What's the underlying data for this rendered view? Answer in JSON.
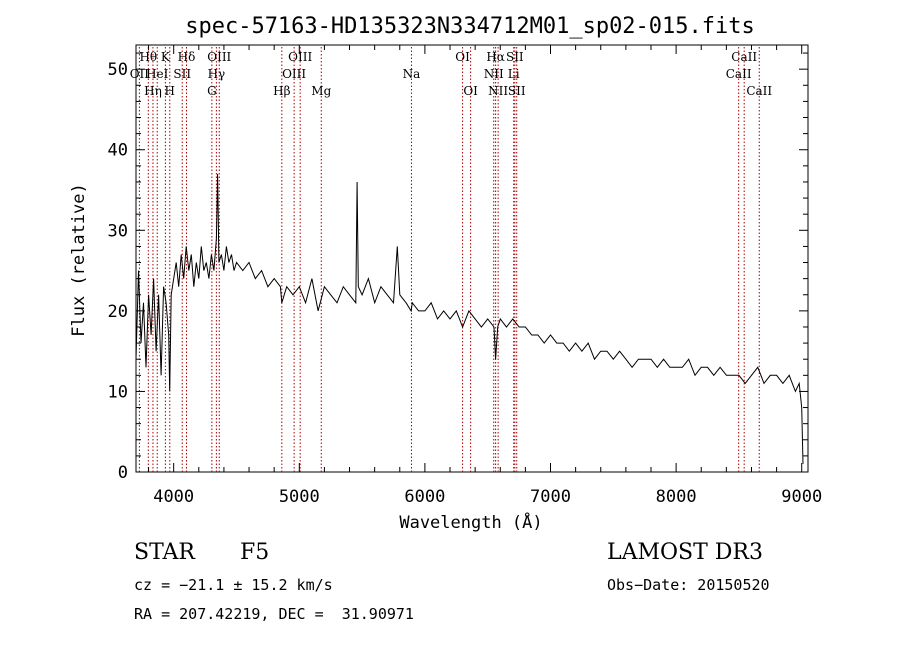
{
  "chart_data": {
    "type": "line",
    "title": "spec-57163-HD135323N334712M01_sp02-015.fits",
    "xlabel": "Wavelength (Å)",
    "ylabel": "Flux (relative)",
    "xlim": [
      3700,
      9050
    ],
    "ylim": [
      0,
      53
    ],
    "xticks": [
      4000,
      5000,
      6000,
      7000,
      8000,
      9000
    ],
    "yticks": [
      0,
      10,
      20,
      30,
      40,
      50
    ],
    "grid": false,
    "series": [
      {
        "name": "flux",
        "x": [
          3700,
          3720,
          3740,
          3760,
          3780,
          3800,
          3820,
          3840,
          3860,
          3880,
          3900,
          3920,
          3940,
          3960,
          3968,
          3980,
          4000,
          4020,
          4040,
          4060,
          4080,
          4100,
          4120,
          4140,
          4160,
          4180,
          4200,
          4220,
          4240,
          4260,
          4280,
          4300,
          4320,
          4340,
          4350,
          4360,
          4380,
          4400,
          4420,
          4440,
          4460,
          4480,
          4500,
          4550,
          4600,
          4650,
          4700,
          4750,
          4800,
          4850,
          4861,
          4900,
          4950,
          5000,
          5050,
          5100,
          5150,
          5200,
          5250,
          5300,
          5350,
          5400,
          5450,
          5460,
          5470,
          5500,
          5550,
          5600,
          5650,
          5700,
          5750,
          5780,
          5800,
          5850,
          5890,
          5900,
          5950,
          6000,
          6050,
          6100,
          6150,
          6200,
          6250,
          6300,
          6350,
          6400,
          6450,
          6500,
          6550,
          6563,
          6580,
          6600,
          6650,
          6700,
          6750,
          6800,
          6850,
          6900,
          6950,
          7000,
          7050,
          7100,
          7150,
          7200,
          7250,
          7300,
          7350,
          7400,
          7450,
          7500,
          7550,
          7600,
          7650,
          7700,
          7750,
          7800,
          7850,
          7900,
          7950,
          8000,
          8050,
          8100,
          8150,
          8200,
          8250,
          8300,
          8350,
          8400,
          8450,
          8500,
          8550,
          8600,
          8650,
          8700,
          8750,
          8800,
          8850,
          8900,
          8950,
          8980,
          9000,
          9010
        ],
        "y": [
          14,
          25,
          16,
          21,
          13,
          22,
          17,
          24,
          15,
          22,
          12,
          23,
          21,
          17,
          10,
          22,
          24,
          26,
          23,
          27,
          24,
          28,
          25,
          27,
          23,
          26,
          24,
          28,
          25,
          26,
          24,
          27,
          25,
          29,
          37,
          26,
          27,
          25,
          28,
          26,
          27,
          25,
          26,
          25,
          26,
          24,
          25,
          23,
          24,
          23,
          21,
          23,
          22,
          23,
          21,
          24,
          20,
          23,
          22,
          21,
          23,
          22,
          21,
          36,
          23,
          22,
          24,
          21,
          23,
          22,
          21,
          28,
          22,
          21,
          20,
          21,
          20,
          20,
          21,
          19,
          20,
          19,
          20,
          18,
          20,
          19,
          18,
          19,
          18,
          14,
          18,
          19,
          18,
          19,
          18,
          18,
          17,
          17,
          16,
          17,
          16,
          16,
          15,
          16,
          15,
          16,
          14,
          15,
          15,
          14,
          15,
          14,
          13,
          14,
          14,
          14,
          13,
          14,
          13,
          13,
          13,
          14,
          12,
          13,
          13,
          12,
          13,
          12,
          12,
          12,
          11,
          12,
          13,
          11,
          12,
          12,
          11,
          12,
          10,
          11,
          8,
          1
        ]
      }
    ],
    "line_markers": [
      {
        "x": 3727,
        "label": "OII",
        "row": 2
      },
      {
        "x": 3798,
        "label": "Hθ",
        "row": 1
      },
      {
        "x": 3835,
        "label": "Hη",
        "row": 3
      },
      {
        "x": 3869,
        "label": "HeI",
        "row": 2
      },
      {
        "x": 3934,
        "label": "K",
        "row": 1
      },
      {
        "x": 3969,
        "label": "H",
        "row": 3
      },
      {
        "x": 4068,
        "label": "SII",
        "row": 2
      },
      {
        "x": 4102,
        "label": "Hδ",
        "row": 1
      },
      {
        "x": 4304,
        "label": "G",
        "row": 3
      },
      {
        "x": 4340,
        "label": "Hγ",
        "row": 2
      },
      {
        "x": 4363,
        "label": "OIII",
        "row": 1
      },
      {
        "x": 4861,
        "label": "Hβ",
        "row": 3
      },
      {
        "x": 4959,
        "label": "OIII",
        "row": 2
      },
      {
        "x": 5007,
        "label": "OIII",
        "row": 1
      },
      {
        "x": 5175,
        "label": "Mg",
        "row": 3
      },
      {
        "x": 5893,
        "label": "Na",
        "row": 2
      },
      {
        "x": 6300,
        "label": "OI",
        "row": 1
      },
      {
        "x": 6364,
        "label": "OI",
        "row": 3
      },
      {
        "x": 6548,
        "label": "NII",
        "row": 2
      },
      {
        "x": 6563,
        "label": "Hα",
        "row": 1
      },
      {
        "x": 6583,
        "label": "NII",
        "row": 3
      },
      {
        "x": 6707,
        "label": "Li",
        "row": 2
      },
      {
        "x": 6716,
        "label": "SII",
        "row": 1
      },
      {
        "x": 6731,
        "label": "SII",
        "row": 3
      },
      {
        "x": 8498,
        "label": "CaII",
        "row": 2
      },
      {
        "x": 8542,
        "label": "CaII",
        "row": 1
      },
      {
        "x": 8662,
        "label": "CaII",
        "row": 3
      }
    ]
  },
  "info": {
    "object_class": "STAR",
    "subclass": "F5",
    "survey": "LAMOST DR3",
    "redshift_text": "cz = −21.1 ± 15.2 km/s",
    "obs_date_text": "Obs−Date: 20150520",
    "coords_text": "RA = 207.42219, DEC =  31.90971"
  },
  "colors": {
    "marker": "#aa0000",
    "line": "#000000"
  }
}
